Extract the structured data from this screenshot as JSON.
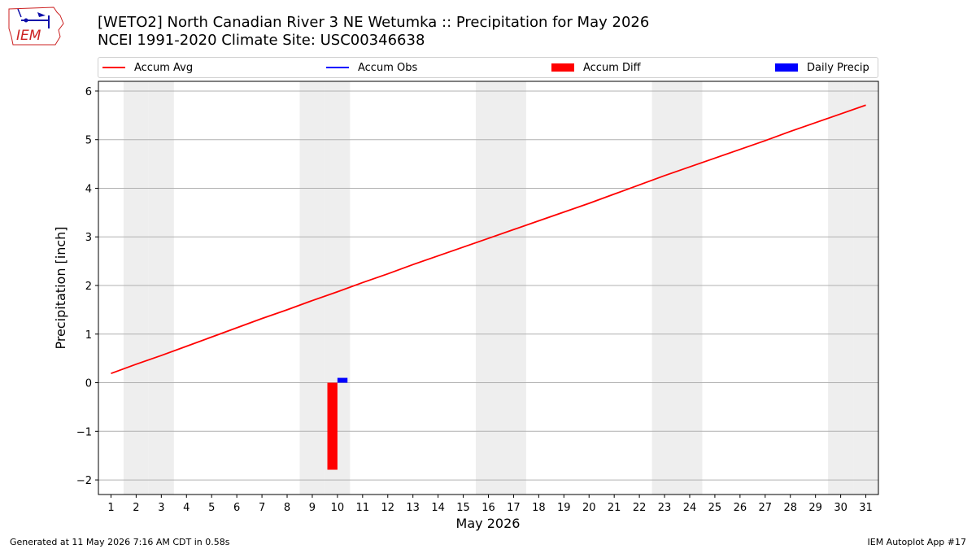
{
  "header": {
    "logo_text": "IEM",
    "title": "[WETO2] North Canadian River 3 NE Wetumka :: Precipitation for May 2026",
    "subtitle": "NCEI 1991-2020 Climate Site: USC00346638"
  },
  "legend": [
    {
      "label": "Accum Avg",
      "color": "#ff0000",
      "kind": "line"
    },
    {
      "label": "Accum Obs",
      "color": "#0000ff",
      "kind": "line"
    },
    {
      "label": "Accum Diff",
      "color": "#ff0000",
      "kind": "box"
    },
    {
      "label": "Daily Precip",
      "color": "#0000ff",
      "kind": "box"
    }
  ],
  "footer": {
    "generated": "Generated at 11 May 2026 7:16 AM CDT in 0.58s",
    "app": "IEM Autoplot App #17"
  },
  "chart_data": {
    "type": "line",
    "xlabel": "May 2026",
    "ylabel": "Precipitation [inch]",
    "x": [
      1,
      2,
      3,
      4,
      5,
      6,
      7,
      8,
      9,
      10,
      11,
      12,
      13,
      14,
      15,
      16,
      17,
      18,
      19,
      20,
      21,
      22,
      23,
      24,
      25,
      26,
      27,
      28,
      29,
      30,
      31
    ],
    "xlim": [
      0.5,
      31.5
    ],
    "ylim": [
      -2.3,
      6.2
    ],
    "yticks": [
      -2,
      -1,
      0,
      1,
      2,
      3,
      4,
      5,
      6
    ],
    "ytick_labels": [
      "−2",
      "−1",
      "0",
      "1",
      "2",
      "3",
      "4",
      "5",
      "6"
    ],
    "grid": true,
    "weekend_shading_days": [
      2,
      3,
      9,
      10,
      16,
      17,
      23,
      24,
      30,
      31
    ],
    "series": [
      {
        "name": "Accum Avg",
        "type": "line",
        "color": "#ff0000",
        "values": [
          0.19,
          0.38,
          0.56,
          0.75,
          0.94,
          1.13,
          1.32,
          1.5,
          1.69,
          1.87,
          2.06,
          2.24,
          2.43,
          2.61,
          2.79,
          2.97,
          3.15,
          3.33,
          3.51,
          3.69,
          3.88,
          4.07,
          4.26,
          4.44,
          4.62,
          4.8,
          4.98,
          5.17,
          5.35,
          5.53,
          5.71
        ]
      },
      {
        "name": "Accum Diff",
        "type": "bar",
        "color": "#ff0000",
        "x": [
          10
        ],
        "values": [
          -1.79
        ]
      },
      {
        "name": "Daily Precip",
        "type": "bar",
        "color": "#0000ff",
        "x": [
          10
        ],
        "values": [
          0.1
        ]
      }
    ]
  }
}
